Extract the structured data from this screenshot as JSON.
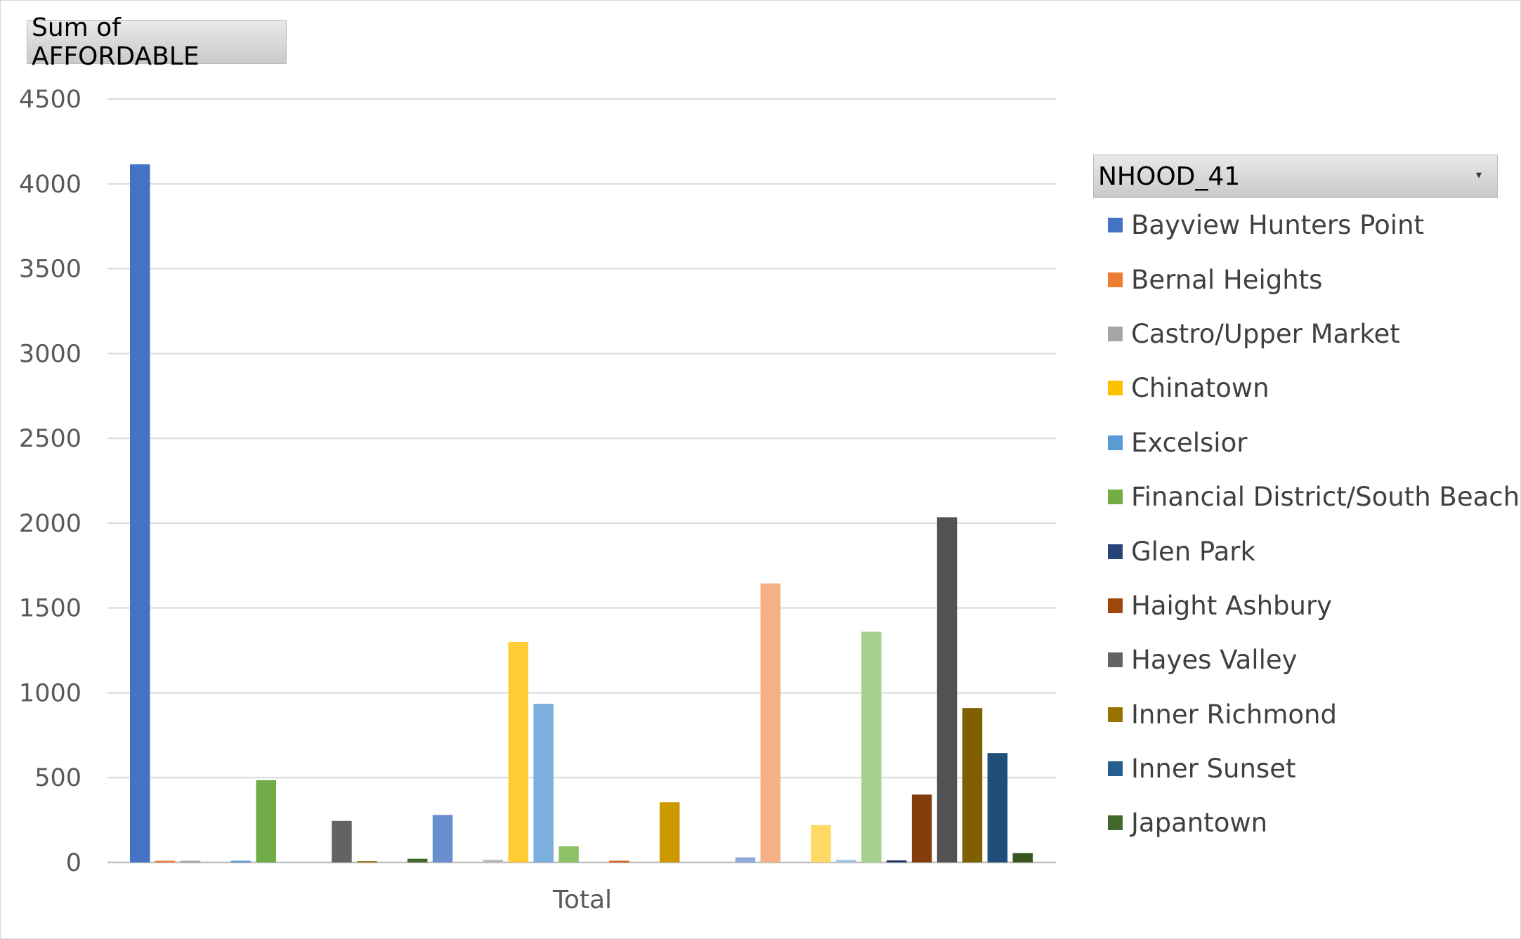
{
  "field_button": {
    "label": "Sum of AFFORDABLE"
  },
  "legend": {
    "title": "NHOOD_41",
    "dropdown_glyph": "▾",
    "items": [
      {
        "label": "Bayview Hunters Point",
        "color": "#4472C4"
      },
      {
        "label": "Bernal Heights",
        "color": "#ED7D31"
      },
      {
        "label": "Castro/Upper Market",
        "color": "#A5A5A5"
      },
      {
        "label": "Chinatown",
        "color": "#FFC000"
      },
      {
        "label": "Excelsior",
        "color": "#5B9BD5"
      },
      {
        "label": "Financial District/South Beach",
        "color": "#70AD47"
      },
      {
        "label": "Glen Park",
        "color": "#264478"
      },
      {
        "label": "Haight Ashbury",
        "color": "#9E480E"
      },
      {
        "label": "Hayes Valley",
        "color": "#636363"
      },
      {
        "label": "Inner Richmond",
        "color": "#997300"
      },
      {
        "label": "Inner Sunset",
        "color": "#255E91"
      },
      {
        "label": "Japantown",
        "color": "#43682B"
      }
    ]
  },
  "chart_data": {
    "type": "bar",
    "categories": [
      "Total"
    ],
    "ylim": [
      0,
      4500
    ],
    "yticks": [
      0,
      500,
      1000,
      1500,
      2000,
      2500,
      3000,
      3500,
      4000,
      4500
    ],
    "grid": true,
    "legend_position": "right",
    "series": [
      {
        "name": "Bayview Hunters Point",
        "values": [
          4115
        ],
        "color": "#4472C4"
      },
      {
        "name": "Bernal Heights",
        "values": [
          10
        ],
        "color": "#ED7D31"
      },
      {
        "name": "Castro/Upper Market",
        "values": [
          10
        ],
        "color": "#A5A5A5"
      },
      {
        "values": [
          0
        ],
        "color": "#FFC000"
      },
      {
        "values": [
          10
        ],
        "color": "#5B9BD5"
      },
      {
        "values": [
          485
        ],
        "color": "#70AD47"
      },
      {
        "values": [
          0
        ],
        "color": "#264478"
      },
      {
        "values": [
          0
        ],
        "color": "#9E480E"
      },
      {
        "values": [
          245
        ],
        "color": "#636363"
      },
      {
        "values": [
          8
        ],
        "color": "#997300"
      },
      {
        "values": [
          0
        ],
        "color": "#255E91"
      },
      {
        "values": [
          22
        ],
        "color": "#43682B"
      },
      {
        "values": [
          280
        ],
        "color": "#698ED0"
      },
      {
        "values": [
          0
        ],
        "color": "#F1975A"
      },
      {
        "values": [
          15
        ],
        "color": "#B7B7B7"
      },
      {
        "values": [
          1300
        ],
        "color": "#FFCD33"
      },
      {
        "values": [
          935
        ],
        "color": "#7CAFDD"
      },
      {
        "values": [
          95
        ],
        "color": "#8CC168"
      },
      {
        "values": [
          0
        ],
        "color": "#335AA1"
      },
      {
        "values": [
          10
        ],
        "color": "#D26012"
      },
      {
        "values": [
          0
        ],
        "color": "#848484"
      },
      {
        "values": [
          355
        ],
        "color": "#CC9A00"
      },
      {
        "values": [
          0
        ],
        "color": "#327DC2"
      },
      {
        "values": [
          0
        ],
        "color": "#5A8A39"
      },
      {
        "values": [
          30
        ],
        "color": "#8FAADC"
      },
      {
        "values": [
          1645
        ],
        "color": "#F4B183"
      },
      {
        "values": [
          0
        ],
        "color": "#C9C9C9"
      },
      {
        "values": [
          220
        ],
        "color": "#FFD966"
      },
      {
        "values": [
          15
        ],
        "color": "#9DC3E6"
      },
      {
        "values": [
          1360
        ],
        "color": "#A9D18E"
      },
      {
        "values": [
          12
        ],
        "color": "#203864"
      },
      {
        "values": [
          400
        ],
        "color": "#843C0C"
      },
      {
        "values": [
          2035
        ],
        "color": "#525252"
      },
      {
        "values": [
          910
        ],
        "color": "#7F6000"
      },
      {
        "values": [
          645
        ],
        "color": "#1F4E79"
      },
      {
        "values": [
          55
        ],
        "color": "#385723"
      }
    ]
  }
}
